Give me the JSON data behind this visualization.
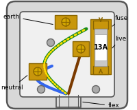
{
  "bg_color": "#ffffff",
  "plug_body_fill": "#d8d8d8",
  "plug_body_edge": "#555555",
  "inner_fill": "#e0e0e0",
  "inner_edge": "#555555",
  "terminal_gold": "#c8960c",
  "terminal_gold_dark": "#8a6500",
  "fuse_silver": "#c8c8c8",
  "fuse_silver_dark": "#999999",
  "wire_green": "#1a8a1a",
  "wire_yellow": "#ffdd00",
  "wire_blue": "#3366ee",
  "wire_brown": "#7a3a00",
  "screw_fill": "#d4a800",
  "screw_edge": "#8a6500",
  "grey_circle": "#aaaaaa",
  "grey_circle_edge": "#666666",
  "label_color": "#000000",
  "line_color": "#333333",
  "labels": {
    "earth": "earth",
    "neutral": "neutral",
    "fuse": "fuse",
    "live": "live",
    "flex": "flex",
    "fuse_rating": "13A"
  },
  "figsize": [
    2.0,
    1.6
  ],
  "dpi": 100
}
